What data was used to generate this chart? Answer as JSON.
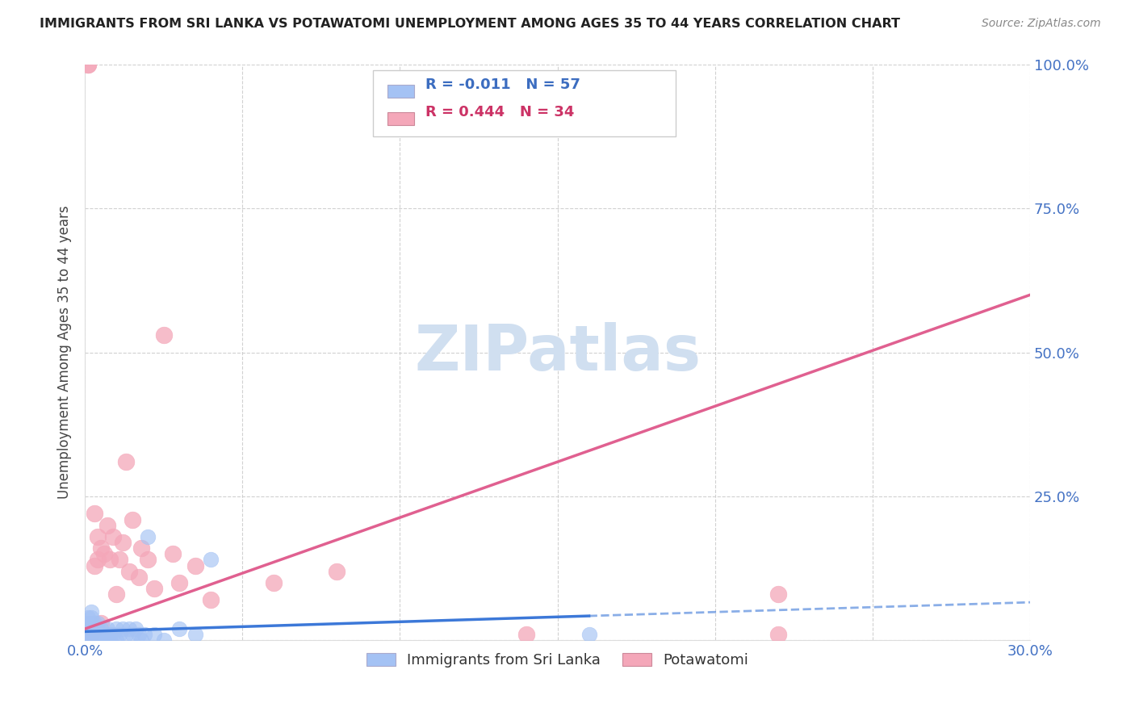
{
  "title": "IMMIGRANTS FROM SRI LANKA VS POTAWATOMI UNEMPLOYMENT AMONG AGES 35 TO 44 YEARS CORRELATION CHART",
  "source": "Source: ZipAtlas.com",
  "ylabel": "Unemployment Among Ages 35 to 44 years",
  "xlim": [
    0.0,
    0.3
  ],
  "ylim": [
    0.0,
    1.0
  ],
  "legend_label1": "Immigrants from Sri Lanka",
  "legend_label2": "Potawatomi",
  "R1": -0.011,
  "N1": 57,
  "R2": 0.444,
  "N2": 34,
  "blue_color": "#a4c2f4",
  "pink_color": "#f4a7b9",
  "blue_line_color": "#3c78d8",
  "pink_line_color": "#e06090",
  "watermark_color": "#d0dff0",
  "sri_lanka_x": [
    0.001,
    0.001,
    0.001,
    0.001,
    0.001,
    0.001,
    0.001,
    0.001,
    0.001,
    0.001,
    0.002,
    0.002,
    0.002,
    0.002,
    0.002,
    0.002,
    0.002,
    0.002,
    0.002,
    0.003,
    0.003,
    0.003,
    0.003,
    0.003,
    0.003,
    0.004,
    0.004,
    0.004,
    0.004,
    0.005,
    0.005,
    0.005,
    0.006,
    0.006,
    0.007,
    0.007,
    0.008,
    0.008,
    0.009,
    0.01,
    0.01,
    0.011,
    0.012,
    0.013,
    0.014,
    0.015,
    0.016,
    0.017,
    0.018,
    0.019,
    0.02,
    0.022,
    0.025,
    0.03,
    0.035,
    0.04,
    0.16
  ],
  "sri_lanka_y": [
    0.0,
    0.0,
    0.0,
    0.0,
    0.0,
    0.01,
    0.01,
    0.02,
    0.03,
    0.04,
    0.0,
    0.0,
    0.0,
    0.01,
    0.01,
    0.02,
    0.03,
    0.04,
    0.05,
    0.0,
    0.0,
    0.01,
    0.01,
    0.02,
    0.03,
    0.0,
    0.01,
    0.02,
    0.03,
    0.0,
    0.01,
    0.02,
    0.0,
    0.01,
    0.0,
    0.02,
    0.0,
    0.01,
    0.01,
    0.0,
    0.02,
    0.01,
    0.02,
    0.01,
    0.02,
    0.01,
    0.02,
    0.01,
    0.0,
    0.01,
    0.18,
    0.01,
    0.0,
    0.02,
    0.01,
    0.14,
    0.01
  ],
  "potawatomi_x": [
    0.001,
    0.001,
    0.002,
    0.003,
    0.003,
    0.003,
    0.004,
    0.004,
    0.005,
    0.005,
    0.006,
    0.007,
    0.008,
    0.009,
    0.01,
    0.011,
    0.012,
    0.013,
    0.014,
    0.015,
    0.017,
    0.018,
    0.02,
    0.022,
    0.025,
    0.028,
    0.03,
    0.035,
    0.04,
    0.06,
    0.08,
    0.14,
    0.22,
    0.22
  ],
  "potawatomi_y": [
    1.0,
    1.0,
    0.01,
    0.02,
    0.13,
    0.22,
    0.14,
    0.18,
    0.03,
    0.16,
    0.15,
    0.2,
    0.14,
    0.18,
    0.08,
    0.14,
    0.17,
    0.31,
    0.12,
    0.21,
    0.11,
    0.16,
    0.14,
    0.09,
    0.53,
    0.15,
    0.1,
    0.13,
    0.07,
    0.1,
    0.12,
    0.01,
    0.01,
    0.08
  ],
  "blue_line_x": [
    0.0,
    0.16,
    0.3
  ],
  "blue_line_solid_end": 0.16,
  "pink_line_x0": 0.0,
  "pink_line_x1": 0.3,
  "pink_line_y0": 0.02,
  "pink_line_y1": 0.6
}
